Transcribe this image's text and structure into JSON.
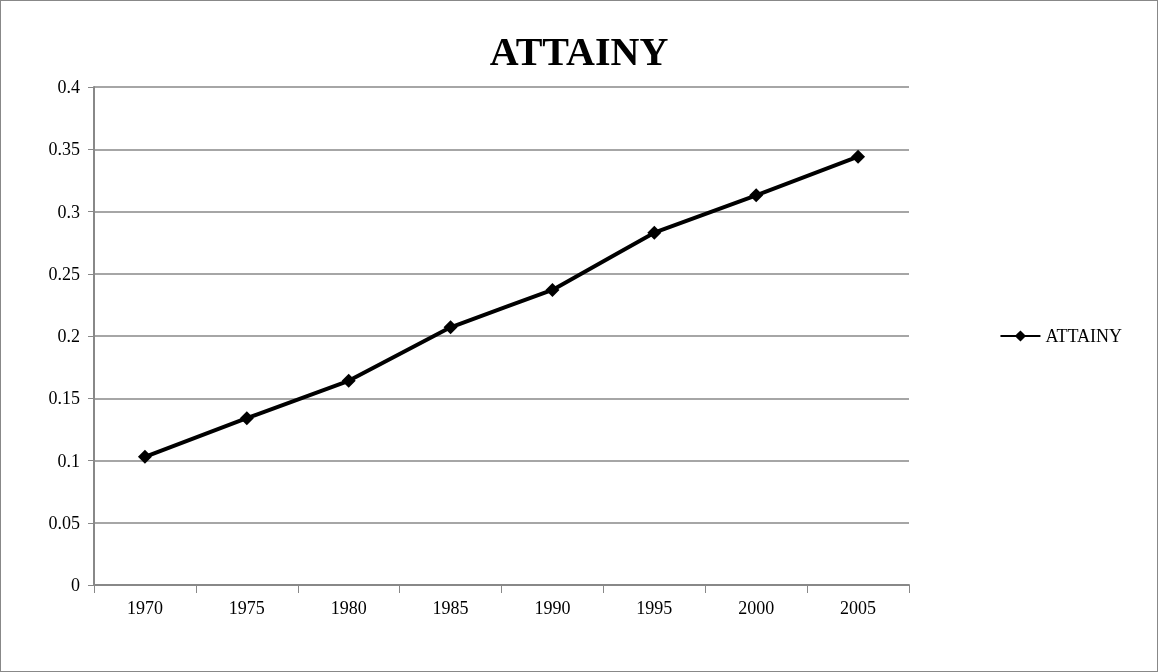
{
  "chart_data": {
    "type": "line",
    "title": "ATTAINY",
    "categories": [
      "1970",
      "1975",
      "1980",
      "1985",
      "1990",
      "1995",
      "2000",
      "2005"
    ],
    "series": [
      {
        "name": "ATTAINY",
        "color": "#000000",
        "values": [
          0.103,
          0.134,
          0.164,
          0.207,
          0.237,
          0.283,
          0.313,
          0.344
        ]
      }
    ],
    "ylim": [
      0,
      0.4
    ],
    "yticks": [
      0,
      0.05,
      0.1,
      0.15,
      0.2,
      0.25,
      0.3,
      0.35,
      0.4
    ],
    "grid": "y",
    "legend": "right",
    "marker": "diamond",
    "line_style": "solid"
  }
}
